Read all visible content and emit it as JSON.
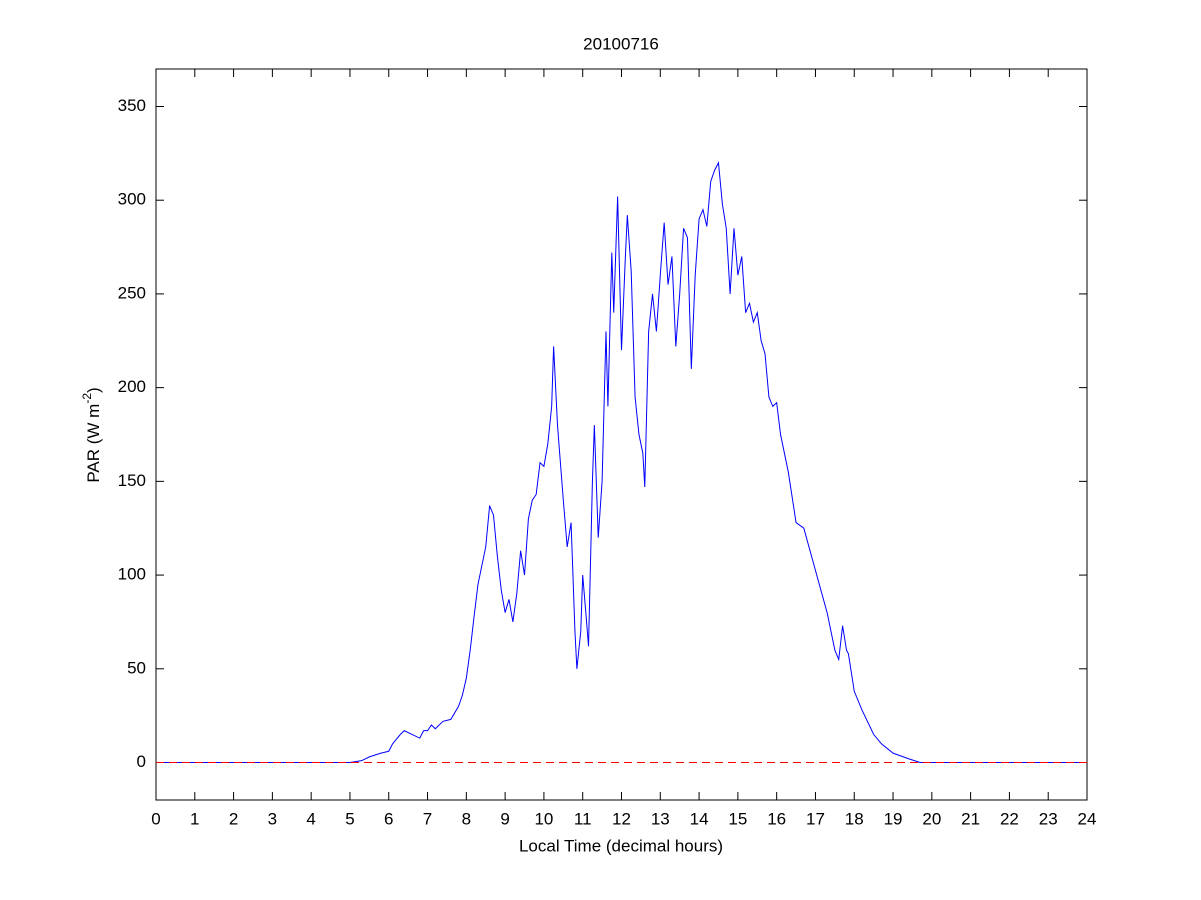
{
  "chart_data": {
    "type": "line",
    "title": "20100716",
    "xlabel": "Local Time (decimal hours)",
    "ylabel": [
      "PAR (W m",
      "-2",
      ")"
    ],
    "x": [
      0,
      1,
      2,
      3,
      4,
      5,
      5.3,
      5.5,
      5.8,
      6,
      6.1,
      6.3,
      6.4,
      6.6,
      6.8,
      6.9,
      7,
      7.1,
      7.2,
      7.4,
      7.6,
      7.8,
      7.9,
      8,
      8.1,
      8.2,
      8.3,
      8.4,
      8.5,
      8.6,
      8.7,
      8.8,
      8.9,
      9,
      9.1,
      9.2,
      9.3,
      9.4,
      9.5,
      9.6,
      9.7,
      9.8,
      9.9,
      10,
      10.1,
      10.2,
      10.25,
      10.35,
      10.5,
      10.6,
      10.7,
      10.8,
      10.85,
      10.95,
      11,
      11.1,
      11.15,
      11.25,
      11.3,
      11.4,
      11.5,
      11.6,
      11.65,
      11.75,
      11.8,
      11.9,
      12,
      12.1,
      12.15,
      12.25,
      12.35,
      12.45,
      12.55,
      12.6,
      12.7,
      12.8,
      12.9,
      13,
      13.1,
      13.2,
      13.3,
      13.4,
      13.5,
      13.6,
      13.7,
      13.8,
      13.9,
      14,
      14.1,
      14.2,
      14.3,
      14.4,
      14.5,
      14.6,
      14.7,
      14.8,
      14.9,
      15,
      15.1,
      15.2,
      15.3,
      15.4,
      15.5,
      15.6,
      15.7,
      15.8,
      15.9,
      16,
      16.1,
      16.3,
      16.5,
      16.7,
      16.9,
      17.1,
      17.3,
      17.5,
      17.6,
      17.7,
      17.8,
      17.85,
      18,
      18.2,
      18.5,
      18.7,
      19,
      19.4,
      19.7,
      20,
      21,
      22,
      23,
      24
    ],
    "series": [
      {
        "color": "#0000ff",
        "values": [
          0,
          0,
          0,
          0,
          0,
          0,
          1,
          3,
          5,
          6,
          10,
          15,
          17,
          15,
          13,
          17,
          17,
          20,
          18,
          22,
          23,
          30,
          36,
          45,
          60,
          78,
          95,
          105,
          115,
          137,
          132,
          110,
          92,
          80,
          87,
          75,
          90,
          113,
          100,
          130,
          140,
          143,
          160,
          158,
          170,
          190,
          222,
          180,
          140,
          115,
          128,
          70,
          50,
          70,
          100,
          75,
          62,
          150,
          180,
          120,
          150,
          230,
          190,
          272,
          240,
          302,
          220,
          270,
          292,
          262,
          195,
          175,
          165,
          147,
          230,
          250,
          230,
          260,
          288,
          255,
          270,
          222,
          250,
          285,
          280,
          210,
          260,
          290,
          295,
          286,
          310,
          316,
          320,
          298,
          285,
          250,
          285,
          260,
          270,
          240,
          245,
          235,
          240,
          225,
          218,
          195,
          190,
          192,
          175,
          155,
          128,
          125,
          110,
          95,
          80,
          60,
          55,
          73,
          60,
          58,
          38,
          28,
          15,
          10,
          5,
          2,
          0,
          0,
          0,
          0,
          0,
          0
        ]
      }
    ],
    "reference_line": {
      "value": 0,
      "color": "#ff0000",
      "dashed": true
    },
    "xlim": [
      0,
      24
    ],
    "xticks": [
      0,
      1,
      2,
      3,
      4,
      5,
      6,
      7,
      8,
      9,
      10,
      11,
      12,
      13,
      14,
      15,
      16,
      17,
      18,
      19,
      20,
      21,
      22,
      23,
      24
    ],
    "ylim": [
      -20,
      370
    ],
    "yticks": [
      0,
      50,
      100,
      150,
      200,
      250,
      300,
      350
    ],
    "grid": false
  }
}
